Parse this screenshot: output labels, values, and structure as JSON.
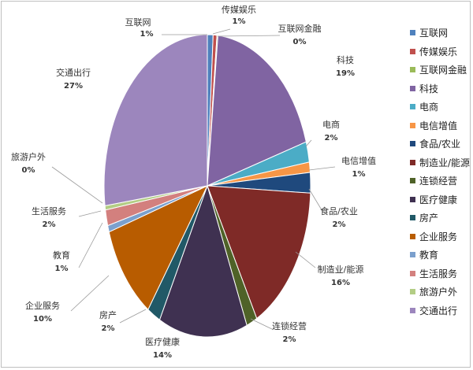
{
  "chart_data": {
    "type": "pie",
    "title": "",
    "slices": [
      {
        "label": "互联网",
        "value": 1,
        "pct_label": "1%",
        "color": "#4f81bd"
      },
      {
        "label": "传媒娱乐",
        "value": 1,
        "pct_label": "1%",
        "color": "#c0504d"
      },
      {
        "label": "互联网金融",
        "value": 0,
        "pct_label": "0%",
        "color": "#9bbb59"
      },
      {
        "label": "科技",
        "value": 19,
        "pct_label": "19%",
        "color": "#8064a2"
      },
      {
        "label": "电商",
        "value": 2,
        "pct_label": "2%",
        "color": "#4bacc6"
      },
      {
        "label": "电信增值",
        "value": 1,
        "pct_label": "1%",
        "color": "#f79646"
      },
      {
        "label": "食品/农业",
        "value": 2,
        "pct_label": "2%",
        "color": "#1f497d"
      },
      {
        "label": "制造业/能源",
        "value": 16,
        "pct_label": "16%",
        "color": "#7f2a27"
      },
      {
        "label": "连锁经营",
        "value": 2,
        "pct_label": "2%",
        "color": "#4f6228"
      },
      {
        "label": "医疗健康",
        "value": 14,
        "pct_label": "14%",
        "color": "#3f3151"
      },
      {
        "label": "房产",
        "value": 2,
        "pct_label": "2%",
        "color": "#215967"
      },
      {
        "label": "企业服务",
        "value": 10,
        "pct_label": "10%",
        "color": "#b85c00"
      },
      {
        "label": "教育",
        "value": 1,
        "pct_label": "1%",
        "color": "#7ba0cd"
      },
      {
        "label": "生活服务",
        "value": 2,
        "pct_label": "2%",
        "color": "#d3807e"
      },
      {
        "label": "旅游户外",
        "value": 0,
        "pct_label": "0%",
        "color": "#b3cd85"
      },
      {
        "label": "交通出行",
        "value": 27,
        "pct_label": "27%",
        "color": "#9c86bd"
      }
    ],
    "legend_placement": "right"
  }
}
